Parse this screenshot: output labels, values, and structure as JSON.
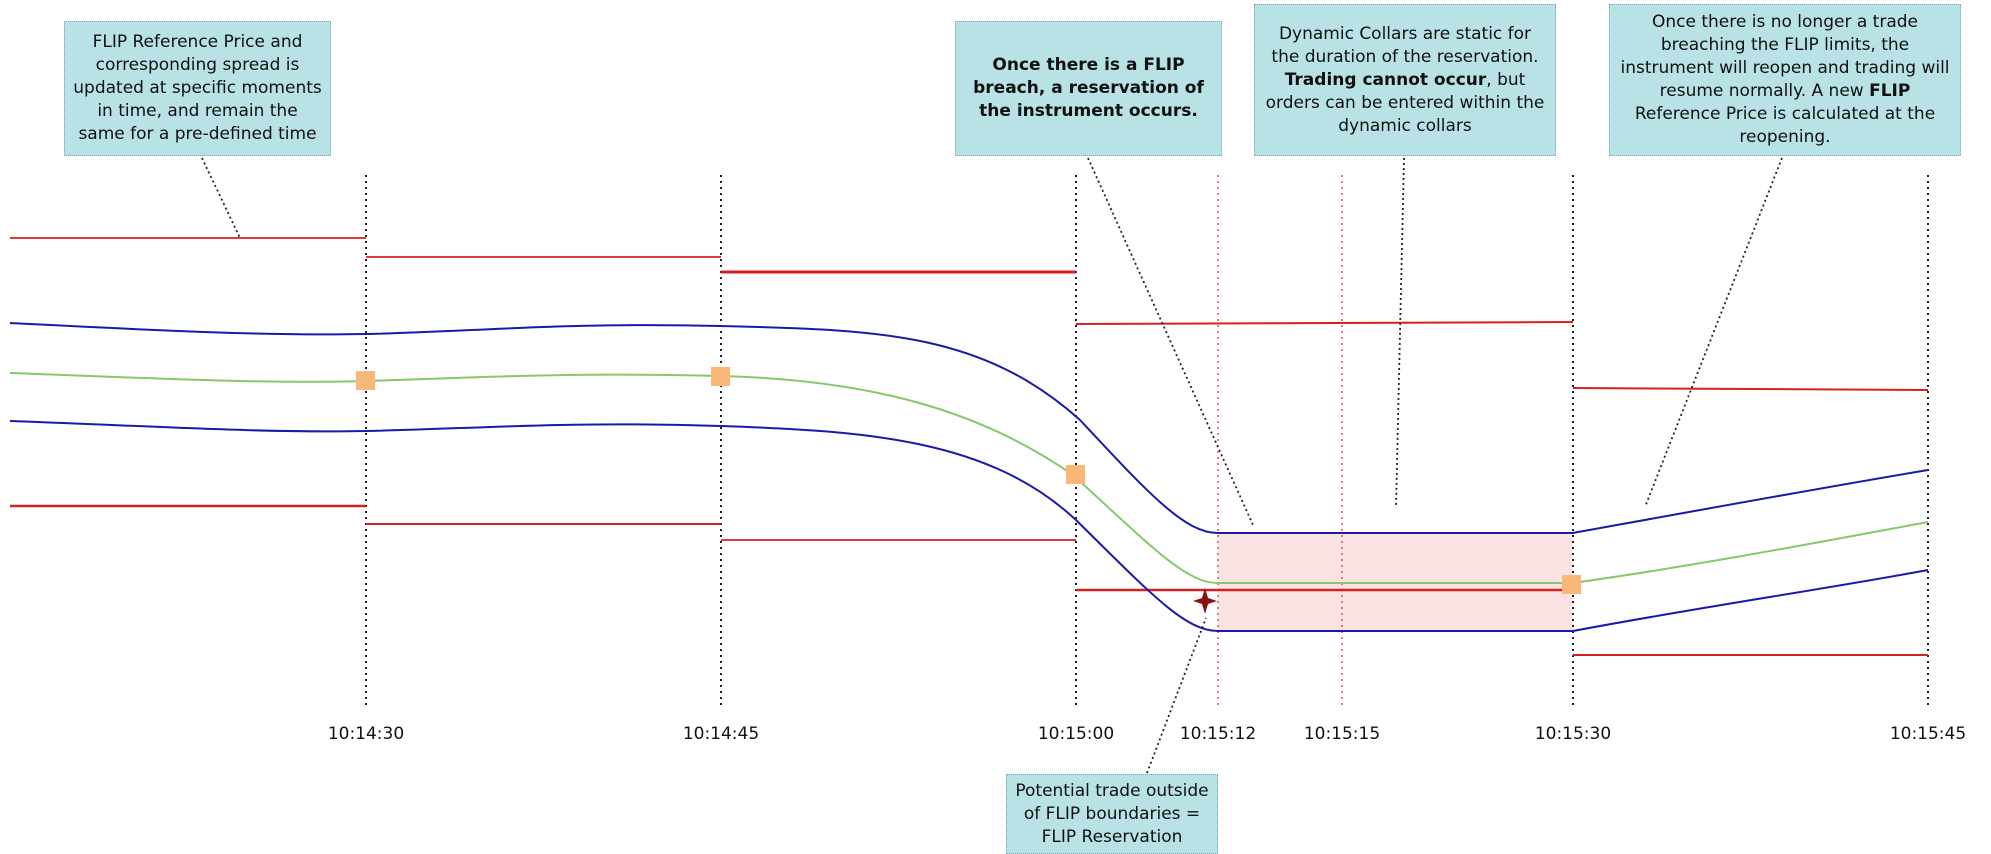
{
  "time_labels": [
    "10:14:30",
    "10:14:45",
    "10:15:00",
    "10:15:12",
    "10:15:15",
    "10:15:30",
    "10:15:45"
  ],
  "callouts": {
    "reference_price": {
      "line1": "FLIP Reference Price and",
      "line2": "corresponding spread is",
      "line3": "updated at specific moments",
      "line4": "in time, and remain the",
      "line5": "same for a pre-defined time"
    },
    "breach": {
      "line1": "Once there is a FLIP",
      "line2": "breach, a reservation of",
      "line3": "the instrument occurs."
    },
    "collars": {
      "line1": "Dynamic Collars are static for",
      "line2": "the duration of the reservation.",
      "line3_bold": "Trading cannot occur",
      "line3_rest": ", but",
      "line4": "orders can be entered within the",
      "line5": "dynamic collars"
    },
    "reopen": {
      "line1": "Once there is no longer a trade",
      "line2": "breaching the FLIP limits, the",
      "line3": "instrument will reopen and trading will",
      "line4_pre": "resume normally. A new ",
      "line4_bold": "FLIP",
      "line5": "Reference Price is calculated at the",
      "line6": "reopening."
    },
    "potential_trade": {
      "line1": "Potential trade outside",
      "line2": "of FLIP boundaries =",
      "line3": "FLIP Reservation"
    }
  },
  "colors": {
    "flip_limit": "#d42020",
    "collar": "#1a1aa8",
    "reference": "#86c96a",
    "marker": "#f9b77a",
    "reservation_fill": "#fbe3e4",
    "trade_star": "#8b1010",
    "callout_bg": "#b8e2e6"
  }
}
